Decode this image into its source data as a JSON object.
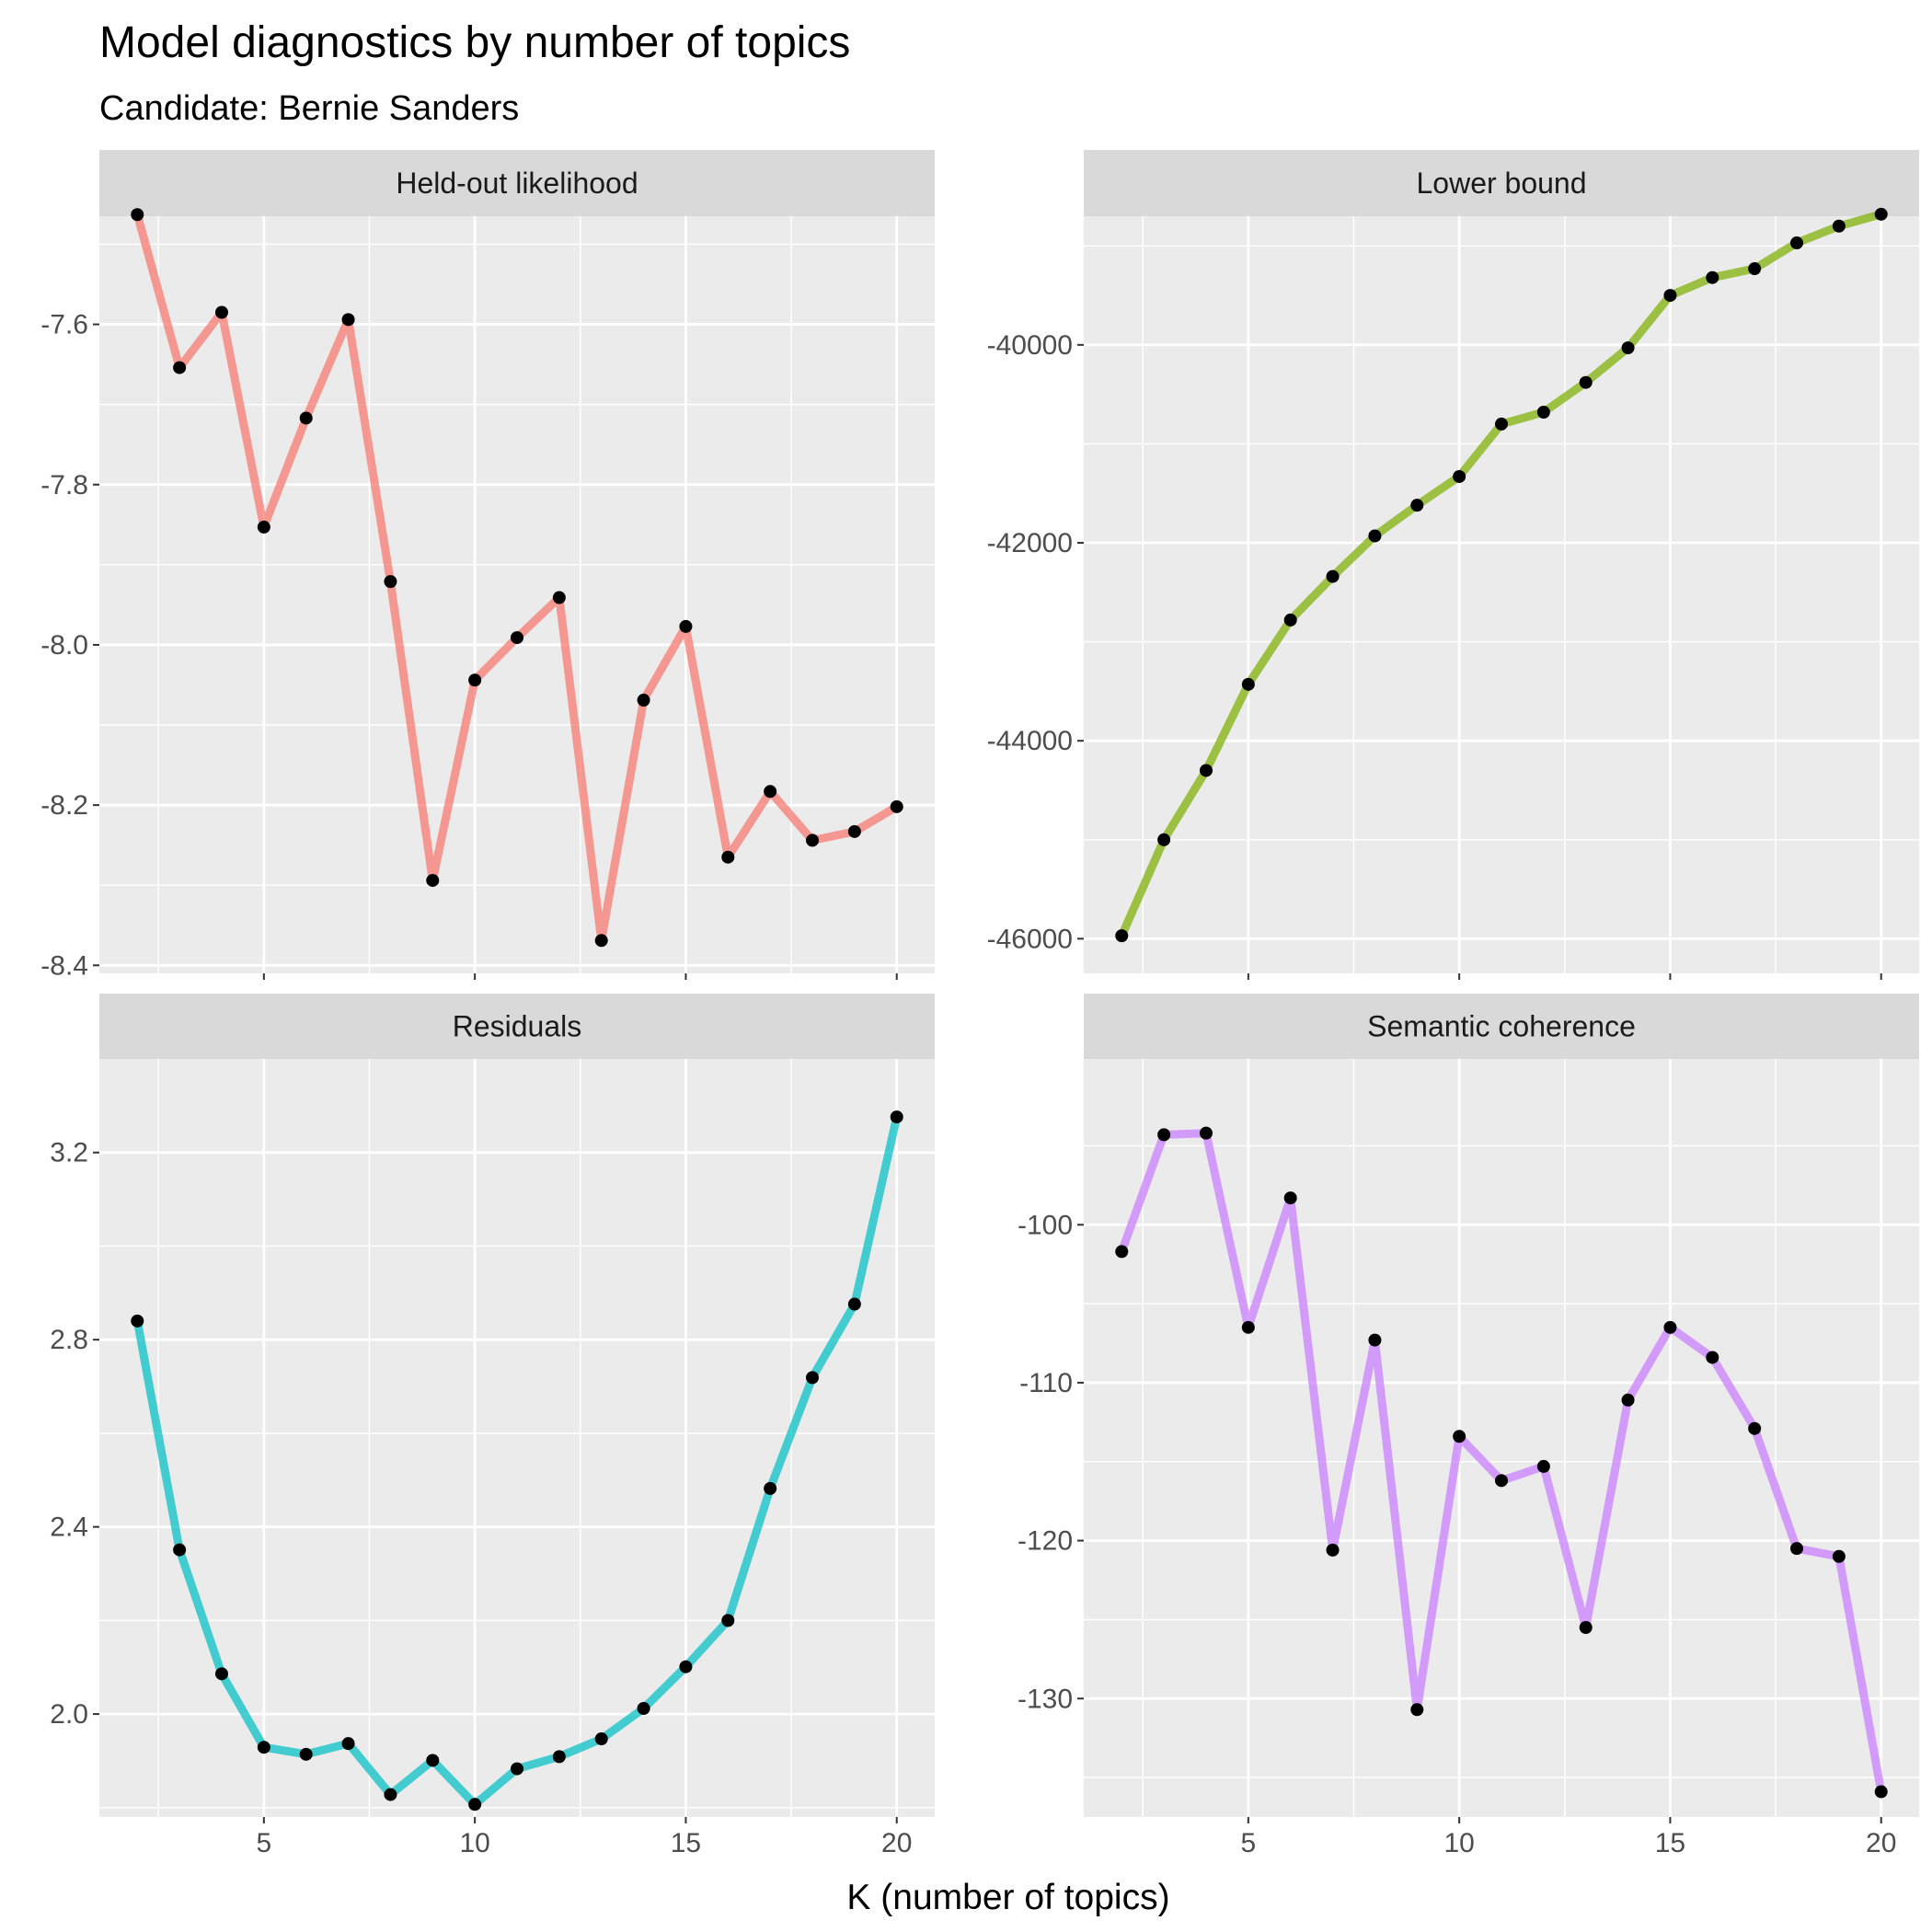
{
  "title": "Model diagnostics by number of topics",
  "subtitle": "Candidate: Bernie Sanders",
  "chart_data": {
    "type": "line",
    "xlabel": "K (number of topics)",
    "ylabel": "",
    "x": [
      2,
      3,
      4,
      5,
      6,
      7,
      8,
      9,
      10,
      11,
      12,
      13,
      14,
      15,
      16,
      17,
      18,
      19,
      20
    ],
    "xlim": [
      1.1,
      20.9
    ],
    "xticks": [
      5,
      10,
      15,
      20
    ],
    "xtick_labels": [
      "5",
      "10",
      "15",
      "20"
    ],
    "point_color": "#000000",
    "panels": [
      {
        "name": "Held-out likelihood",
        "color": "#F8766D",
        "ylim": [
          -8.41,
          -7.465
        ],
        "yticks": [
          -7.6,
          -7.8,
          -8.0,
          -8.2,
          -8.4
        ],
        "ytick_labels": [
          "-7.6",
          "-7.8",
          "-8.0",
          "-8.2",
          "-8.4"
        ],
        "values": [
          -7.463,
          -7.654,
          -7.585,
          -7.853,
          -7.717,
          -7.594,
          -7.921,
          -8.294,
          -8.044,
          -7.991,
          -7.941,
          -8.369,
          -8.069,
          -7.977,
          -8.265,
          -8.183,
          -8.244,
          -8.233,
          -8.202
        ]
      },
      {
        "name": "Lower bound",
        "color": "#7CAE00",
        "ylim": [
          -46350,
          -38700
        ],
        "yticks": [
          -40000,
          -42000,
          -44000,
          -46000
        ],
        "ytick_labels": [
          "-40000",
          "-42000",
          "-44000",
          "-46000"
        ],
        "values": [
          -45970,
          -45000,
          -44300,
          -43430,
          -42780,
          -42340,
          -41930,
          -41620,
          -41330,
          -40800,
          -40680,
          -40380,
          -40030,
          -39500,
          -39320,
          -39230,
          -38970,
          -38800,
          -38680
        ]
      },
      {
        "name": "Residuals",
        "color": "#00BFC4",
        "ylim": [
          1.78,
          3.4
        ],
        "yticks": [
          2.0,
          2.4,
          2.8,
          3.2
        ],
        "ytick_labels": [
          "2.0",
          "2.4",
          "2.8",
          "3.2"
        ],
        "values": [
          2.84,
          2.351,
          2.086,
          1.929,
          1.914,
          1.937,
          1.828,
          1.901,
          1.807,
          1.883,
          1.909,
          1.947,
          2.012,
          2.101,
          2.2,
          2.482,
          2.719,
          2.876,
          3.276
        ]
      },
      {
        "name": "Semantic coherence",
        "color": "#C77CFF",
        "ylim": [
          -137.5,
          -89.5
        ],
        "yticks": [
          -100,
          -110,
          -120,
          -130
        ],
        "ytick_labels": [
          "-100",
          "-110",
          "-120",
          "-130"
        ],
        "values": [
          -101.7,
          -94.3,
          -94.2,
          -106.5,
          -98.3,
          -120.6,
          -107.3,
          -130.7,
          -113.4,
          -116.2,
          -115.3,
          -125.5,
          -111.1,
          -106.5,
          -108.4,
          -112.9,
          -120.5,
          -121.0,
          -135.9
        ]
      }
    ]
  }
}
